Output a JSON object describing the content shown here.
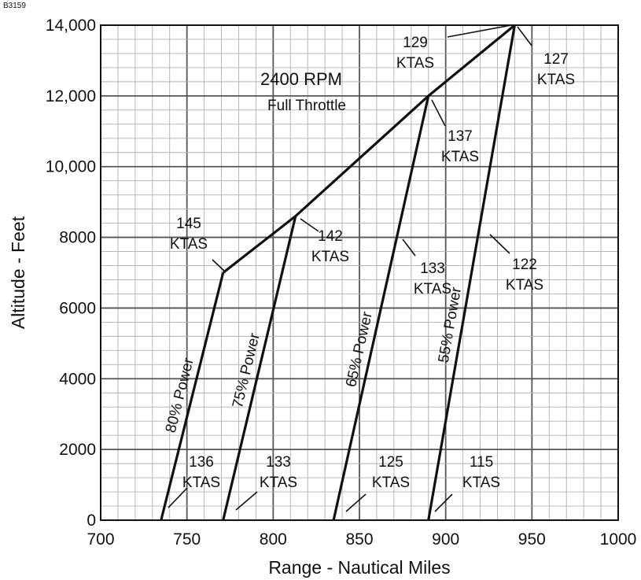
{
  "figure_id": "B3159",
  "chart_data": {
    "type": "line",
    "title": "",
    "xlabel": "Range - Nautical Miles",
    "ylabel": "Altitude - Feet",
    "xlim": [
      700,
      1000
    ],
    "ylim": [
      0,
      14000
    ],
    "x_ticks": [
      700,
      750,
      800,
      850,
      900,
      950,
      1000
    ],
    "x_tick_labels": [
      "700",
      "750",
      "800",
      "850",
      "900",
      "950",
      "1000"
    ],
    "y_ticks": [
      0,
      2000,
      4000,
      6000,
      8000,
      10000,
      12000,
      14000
    ],
    "y_tick_labels": [
      "0",
      "2000",
      "4000",
      "6000",
      "8000",
      "10,000",
      "12,000",
      "14,000"
    ],
    "grid": true,
    "series": [
      {
        "name": "80% Power",
        "points": [
          [
            735,
            0
          ],
          [
            771,
            7000
          ]
        ]
      },
      {
        "name": "75% Power",
        "points": [
          [
            771,
            0
          ],
          [
            813,
            8600
          ]
        ]
      },
      {
        "name": "65% Power",
        "points": [
          [
            835,
            0
          ],
          [
            890,
            12000
          ]
        ]
      },
      {
        "name": "55% Power",
        "points": [
          [
            890,
            0
          ],
          [
            940,
            14000
          ]
        ]
      },
      {
        "name": "2400 RPM Full Throttle",
        "points": [
          [
            771,
            7000
          ],
          [
            813,
            8600
          ],
          [
            890,
            12000
          ],
          [
            940,
            14000
          ]
        ]
      }
    ],
    "annotations": {
      "full_throttle": {
        "line1": "2400 RPM",
        "line2": "Full Throttle"
      },
      "labels": [
        {
          "id": "ktas-129",
          "speed": "129",
          "unit": "KTAS"
        },
        {
          "id": "ktas-127",
          "speed": "127",
          "unit": "KTAS"
        },
        {
          "id": "ktas-137",
          "speed": "137",
          "unit": "KTAS"
        },
        {
          "id": "ktas-145",
          "speed": "145",
          "unit": "KTAS"
        },
        {
          "id": "ktas-142",
          "speed": "142",
          "unit": "KTAS"
        },
        {
          "id": "ktas-133-top",
          "speed": "133",
          "unit": "KTAS"
        },
        {
          "id": "ktas-122",
          "speed": "122",
          "unit": "KTAS"
        },
        {
          "id": "ktas-136",
          "speed": "136",
          "unit": "KTAS"
        },
        {
          "id": "ktas-133-bottom",
          "speed": "133",
          "unit": "KTAS"
        },
        {
          "id": "ktas-125",
          "speed": "125",
          "unit": "KTAS"
        },
        {
          "id": "ktas-115",
          "speed": "115",
          "unit": "KTAS"
        }
      ]
    }
  }
}
